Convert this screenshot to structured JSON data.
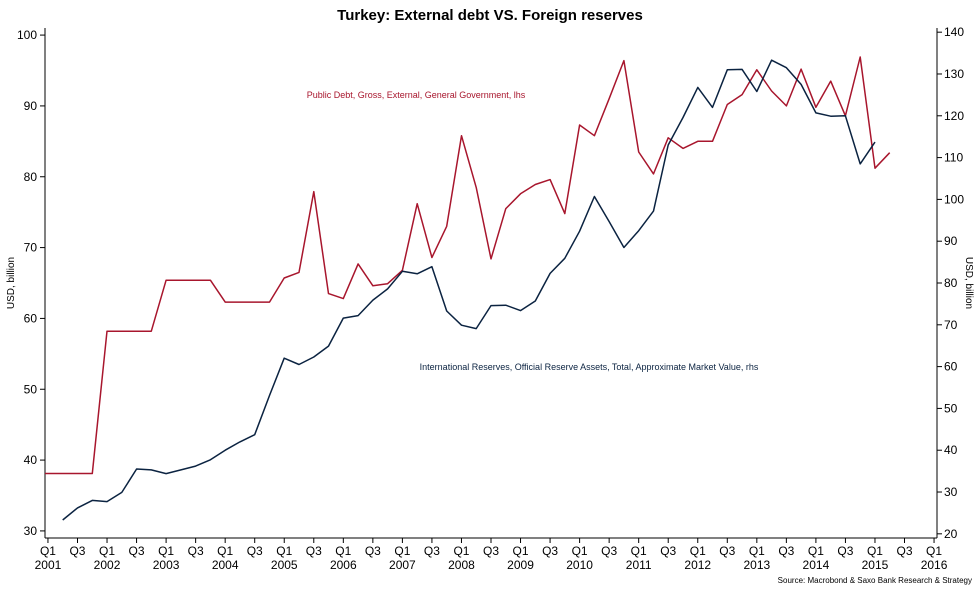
{
  "chart_data": {
    "type": "line",
    "title": "Turkey: External debt VS. Foreign reserves",
    "ylabel_left": "USD, billion",
    "ylabel_right": "USD, billion",
    "ylim_left": [
      29,
      101
    ],
    "ylim_right": [
      19,
      141
    ],
    "yticks_left": [
      30,
      40,
      50,
      60,
      70,
      80,
      90,
      100
    ],
    "yticks_right": [
      20,
      30,
      40,
      50,
      60,
      70,
      80,
      90,
      100,
      110,
      120,
      130,
      140
    ],
    "x_start_index": -0.2,
    "x_end_index": 60.2,
    "x_quarter_ticks": [
      {
        "index": 0,
        "label": "Q1"
      },
      {
        "index": 2,
        "label": "Q3"
      },
      {
        "index": 4,
        "label": "Q1"
      },
      {
        "index": 6,
        "label": "Q3"
      },
      {
        "index": 8,
        "label": "Q1"
      },
      {
        "index": 10,
        "label": "Q3"
      },
      {
        "index": 12,
        "label": "Q1"
      },
      {
        "index": 14,
        "label": "Q3"
      },
      {
        "index": 16,
        "label": "Q1"
      },
      {
        "index": 18,
        "label": "Q3"
      },
      {
        "index": 20,
        "label": "Q1"
      },
      {
        "index": 22,
        "label": "Q3"
      },
      {
        "index": 24,
        "label": "Q1"
      },
      {
        "index": 26,
        "label": "Q3"
      },
      {
        "index": 28,
        "label": "Q1"
      },
      {
        "index": 30,
        "label": "Q3"
      },
      {
        "index": 32,
        "label": "Q1"
      },
      {
        "index": 34,
        "label": "Q3"
      },
      {
        "index": 36,
        "label": "Q1"
      },
      {
        "index": 38,
        "label": "Q3"
      },
      {
        "index": 40,
        "label": "Q1"
      },
      {
        "index": 42,
        "label": "Q3"
      },
      {
        "index": 44,
        "label": "Q1"
      },
      {
        "index": 46,
        "label": "Q3"
      },
      {
        "index": 48,
        "label": "Q1"
      },
      {
        "index": 50,
        "label": "Q3"
      },
      {
        "index": 52,
        "label": "Q1"
      },
      {
        "index": 54,
        "label": "Q3"
      },
      {
        "index": 56,
        "label": "Q1"
      },
      {
        "index": 58,
        "label": "Q3"
      },
      {
        "index": 60,
        "label": "Q1"
      }
    ],
    "x_year_labels": [
      {
        "index": 0,
        "label": "2001"
      },
      {
        "index": 4,
        "label": "2002"
      },
      {
        "index": 8,
        "label": "2003"
      },
      {
        "index": 12,
        "label": "2004"
      },
      {
        "index": 16,
        "label": "2005"
      },
      {
        "index": 20,
        "label": "2006"
      },
      {
        "index": 24,
        "label": "2007"
      },
      {
        "index": 28,
        "label": "2008"
      },
      {
        "index": 32,
        "label": "2009"
      },
      {
        "index": 36,
        "label": "2010"
      },
      {
        "index": 40,
        "label": "2011"
      },
      {
        "index": 44,
        "label": "2012"
      },
      {
        "index": 48,
        "label": "2013"
      },
      {
        "index": 52,
        "label": "2014"
      },
      {
        "index": 56,
        "label": "2015"
      },
      {
        "index": 60,
        "label": "2016"
      }
    ],
    "series": [
      {
        "name": "Public Debt, Gross, External, General Government, lhs",
        "axis": "left",
        "color": "#a8162d",
        "start_index": -1,
        "values": [
          38.1,
          38.1,
          38.1,
          38.1,
          38.1,
          58.2,
          58.2,
          58.2,
          58.2,
          65.4,
          65.4,
          65.4,
          65.4,
          62.3,
          62.3,
          62.3,
          62.3,
          65.7,
          66.5,
          77.9,
          63.5,
          62.8,
          67.7,
          64.6,
          64.9,
          66.8,
          76.2,
          68.6,
          73.0,
          85.8,
          78.5,
          68.4,
          75.5,
          77.6,
          78.9,
          79.6,
          74.8,
          87.3,
          85.8,
          91.0,
          96.4,
          83.5,
          80.4,
          85.5,
          84.0,
          85.0,
          85.0,
          90.2,
          91.6,
          95.1,
          92.1,
          90.0,
          95.2,
          89.8,
          93.5,
          88.6,
          96.9,
          81.2,
          83.4
        ]
      },
      {
        "name": "International Reserves, Official Reserve Assets, Total, Approximate Market Value, rhs",
        "axis": "right",
        "color": "#0b2341",
        "start_index": 1,
        "values": [
          23.3,
          26.2,
          28.0,
          27.7,
          29.9,
          35.5,
          35.3,
          34.4,
          35.3,
          36.2,
          37.7,
          40.0,
          42.0,
          43.7,
          53.1,
          62.0,
          60.5,
          62.3,
          64.9,
          71.6,
          72.2,
          75.9,
          78.6,
          82.8,
          82.2,
          83.9,
          73.3,
          69.9,
          69.1,
          74.6,
          74.7,
          73.4,
          75.7,
          82.3,
          85.9,
          92.4,
          100.7,
          94.7,
          88.5,
          92.5,
          97.2,
          113.0,
          119.6,
          126.8,
          122.0,
          131.0,
          131.1,
          125.8,
          133.3,
          131.5,
          127.5,
          120.7,
          119.9,
          120.0,
          108.5,
          113.7
        ]
      }
    ],
    "annotations": [
      {
        "text": "Public Debt, Gross, External, General Government, lhs",
        "series": 0
      },
      {
        "text": "International Reserves, Official Reserve Assets, Total, Approximate Market Value, rhs",
        "series": 1
      }
    ],
    "source": "Source: Macrobond & Saxo Bank Research & Strategy"
  }
}
